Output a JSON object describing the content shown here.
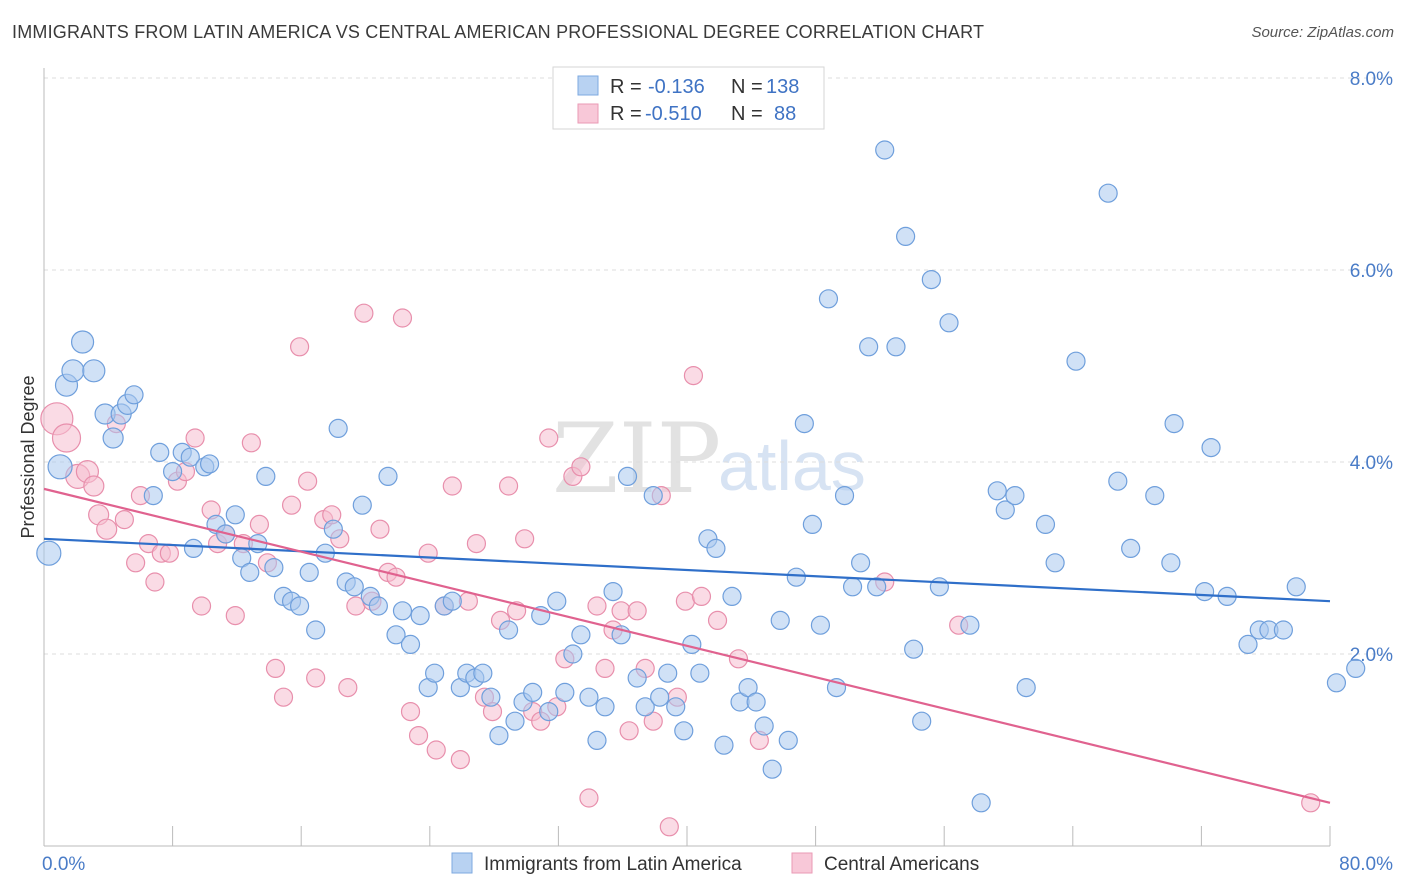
{
  "title": "IMMIGRANTS FROM LATIN AMERICA VS CENTRAL AMERICAN PROFESSIONAL DEGREE CORRELATION CHART",
  "source": "Source: ZipAtlas.com",
  "watermark": {
    "zip": "ZIP",
    "atlas": "atlas"
  },
  "colors": {
    "blue_fill": "#aac8ef",
    "blue_stroke": "#6f9fdc",
    "blue_line": "#2f6fc9",
    "pink_fill": "#f6bdd0",
    "pink_stroke": "#e88fac",
    "pink_line": "#e0628f",
    "grid": "#dcdcdc",
    "tick_text": "#4a7cc7"
  },
  "legend": {
    "rows": [
      {
        "r_label": "R =",
        "r_value": "-0.136",
        "n_label": "N =",
        "n_value": "138"
      },
      {
        "r_label": "R =",
        "r_value": "-0.510",
        "n_label": "N =",
        "n_value": "88"
      }
    ]
  },
  "chart_data": {
    "type": "scatter",
    "ylabel": "Professional Degree",
    "xlim": [
      0,
      80
    ],
    "ylim": [
      0,
      8.2
    ],
    "x_tick_labels": [
      "0.0%",
      "80.0%"
    ],
    "y_ticks": [
      2,
      4,
      6,
      8
    ],
    "y_tick_labels": [
      "2.0%",
      "4.0%",
      "6.0%",
      "8.0%"
    ],
    "grid": "horizontal dashed",
    "legend_placement": "top-center",
    "series": [
      {
        "name": "Immigrants from Latin America",
        "r": -0.136,
        "n": 138,
        "trend": {
          "x0": 0,
          "y0": 3.2,
          "x1": 80,
          "y1": 2.55
        },
        "points": [
          [
            0.3,
            3.05,
            12
          ],
          [
            1.0,
            3.95,
            12
          ],
          [
            1.4,
            4.8,
            11
          ],
          [
            1.8,
            4.95,
            11
          ],
          [
            2.4,
            5.25,
            11
          ],
          [
            3.1,
            4.95,
            11
          ],
          [
            3.8,
            4.5,
            10
          ],
          [
            4.3,
            4.25,
            10
          ],
          [
            4.8,
            4.5,
            10
          ],
          [
            5.2,
            4.6,
            10
          ],
          [
            5.6,
            4.7,
            9
          ],
          [
            6.8,
            3.65,
            9
          ],
          [
            7.2,
            4.1,
            9
          ],
          [
            8.0,
            3.9,
            9
          ],
          [
            8.6,
            4.1,
            9
          ],
          [
            9.1,
            4.05,
            9
          ],
          [
            9.3,
            3.1,
            9
          ],
          [
            10.0,
            3.95,
            9
          ],
          [
            10.3,
            3.98,
            9
          ],
          [
            10.7,
            3.35,
            9
          ],
          [
            11.3,
            3.25,
            9
          ],
          [
            11.9,
            3.45,
            9
          ],
          [
            12.3,
            3.0,
            9
          ],
          [
            12.8,
            2.85,
            9
          ],
          [
            13.3,
            3.15,
            9
          ],
          [
            13.8,
            3.85,
            9
          ],
          [
            14.3,
            2.9,
            9
          ],
          [
            14.9,
            2.6,
            9
          ],
          [
            15.4,
            2.55,
            9
          ],
          [
            15.9,
            2.5,
            9
          ],
          [
            16.5,
            2.85,
            9
          ],
          [
            16.9,
            2.25,
            9
          ],
          [
            17.5,
            3.05,
            9
          ],
          [
            18.0,
            3.3,
            9
          ],
          [
            18.3,
            4.35,
            9
          ],
          [
            18.8,
            2.75,
            9
          ],
          [
            19.3,
            2.7,
            9
          ],
          [
            19.8,
            3.55,
            9
          ],
          [
            20.3,
            2.6,
            9
          ],
          [
            20.8,
            2.5,
            9
          ],
          [
            21.4,
            3.85,
            9
          ],
          [
            21.9,
            2.2,
            9
          ],
          [
            22.3,
            2.45,
            9
          ],
          [
            22.8,
            2.1,
            9
          ],
          [
            23.4,
            2.4,
            9
          ],
          [
            23.9,
            1.65,
            9
          ],
          [
            24.3,
            1.8,
            9
          ],
          [
            24.9,
            2.5,
            9
          ],
          [
            25.4,
            2.55,
            9
          ],
          [
            25.9,
            1.65,
            9
          ],
          [
            26.3,
            1.8,
            9
          ],
          [
            26.8,
            1.75,
            9
          ],
          [
            27.3,
            1.8,
            9
          ],
          [
            27.8,
            1.55,
            9
          ],
          [
            28.3,
            1.15,
            9
          ],
          [
            28.9,
            2.25,
            9
          ],
          [
            29.3,
            1.3,
            9
          ],
          [
            29.8,
            1.5,
            9
          ],
          [
            30.4,
            1.6,
            9
          ],
          [
            30.9,
            2.4,
            9
          ],
          [
            31.4,
            1.4,
            9
          ],
          [
            31.9,
            2.55,
            9
          ],
          [
            32.4,
            1.6,
            9
          ],
          [
            32.9,
            2.0,
            9
          ],
          [
            33.4,
            2.2,
            9
          ],
          [
            33.9,
            1.55,
            9
          ],
          [
            34.4,
            1.1,
            9
          ],
          [
            34.9,
            1.45,
            9
          ],
          [
            35.4,
            2.65,
            9
          ],
          [
            35.9,
            2.2,
            9
          ],
          [
            36.3,
            3.85,
            9
          ],
          [
            36.9,
            1.75,
            9
          ],
          [
            37.4,
            1.45,
            9
          ],
          [
            37.9,
            3.65,
            9
          ],
          [
            38.3,
            1.55,
            9
          ],
          [
            38.8,
            1.8,
            9
          ],
          [
            39.3,
            1.45,
            9
          ],
          [
            39.8,
            1.2,
            9
          ],
          [
            40.3,
            2.1,
            9
          ],
          [
            40.8,
            1.8,
            9
          ],
          [
            41.3,
            3.2,
            9
          ],
          [
            41.8,
            3.1,
            9
          ],
          [
            42.3,
            1.05,
            9
          ],
          [
            42.8,
            2.6,
            9
          ],
          [
            43.3,
            1.5,
            9
          ],
          [
            43.8,
            1.65,
            9
          ],
          [
            44.3,
            1.5,
            9
          ],
          [
            44.8,
            1.25,
            9
          ],
          [
            45.3,
            0.8,
            9
          ],
          [
            45.8,
            2.35,
            9
          ],
          [
            46.3,
            1.1,
            9
          ],
          [
            46.8,
            2.8,
            9
          ],
          [
            47.3,
            4.4,
            9
          ],
          [
            47.8,
            3.35,
            9
          ],
          [
            48.3,
            2.3,
            9
          ],
          [
            48.8,
            5.7,
            9
          ],
          [
            49.3,
            1.65,
            9
          ],
          [
            49.8,
            3.65,
            9
          ],
          [
            50.3,
            2.7,
            9
          ],
          [
            50.8,
            2.95,
            9
          ],
          [
            51.3,
            5.2,
            9
          ],
          [
            51.8,
            2.7,
            9
          ],
          [
            52.3,
            7.25,
            9
          ],
          [
            53.0,
            5.2,
            9
          ],
          [
            53.6,
            6.35,
            9
          ],
          [
            54.1,
            2.05,
            9
          ],
          [
            54.6,
            1.3,
            9
          ],
          [
            55.2,
            5.9,
            9
          ],
          [
            55.7,
            2.7,
            9
          ],
          [
            56.3,
            5.45,
            9
          ],
          [
            57.6,
            2.3,
            9
          ],
          [
            58.3,
            0.45,
            9
          ],
          [
            59.3,
            3.7,
            9
          ],
          [
            59.8,
            3.5,
            9
          ],
          [
            60.4,
            3.65,
            9
          ],
          [
            61.1,
            1.65,
            9
          ],
          [
            62.3,
            3.35,
            9
          ],
          [
            62.9,
            2.95,
            9
          ],
          [
            64.2,
            5.05,
            9
          ],
          [
            66.2,
            6.8,
            9
          ],
          [
            66.8,
            3.8,
            9
          ],
          [
            67.6,
            3.1,
            9
          ],
          [
            69.1,
            3.65,
            9
          ],
          [
            70.1,
            2.95,
            9
          ],
          [
            70.3,
            4.4,
            9
          ],
          [
            72.2,
            2.65,
            9
          ],
          [
            72.6,
            4.15,
            9
          ],
          [
            73.6,
            2.6,
            9
          ],
          [
            74.9,
            2.1,
            9
          ],
          [
            75.6,
            2.25,
            9
          ],
          [
            76.2,
            2.25,
            9
          ],
          [
            77.1,
            2.25,
            9
          ],
          [
            77.9,
            2.7,
            9
          ],
          [
            80.4,
            1.7,
            9
          ],
          [
            81.6,
            1.85,
            9
          ]
        ]
      },
      {
        "name": "Central Americans",
        "r": -0.51,
        "n": 88,
        "trend": {
          "x0": 0,
          "y0": 3.72,
          "x1": 80,
          "y1": 0.45
        },
        "points": [
          [
            0.8,
            4.45,
            16
          ],
          [
            1.4,
            4.25,
            14
          ],
          [
            2.1,
            3.85,
            12
          ],
          [
            2.7,
            3.9,
            11
          ],
          [
            3.1,
            3.75,
            10
          ],
          [
            3.4,
            3.45,
            10
          ],
          [
            3.9,
            3.3,
            10
          ],
          [
            4.5,
            4.4,
            9
          ],
          [
            5.0,
            3.4,
            9
          ],
          [
            5.7,
            2.95,
            9
          ],
          [
            6.0,
            3.65,
            9
          ],
          [
            6.5,
            3.15,
            9
          ],
          [
            6.9,
            2.75,
            9
          ],
          [
            7.3,
            3.05,
            9
          ],
          [
            7.8,
            3.05,
            9
          ],
          [
            8.3,
            3.8,
            9
          ],
          [
            8.8,
            3.9,
            9
          ],
          [
            9.4,
            4.25,
            9
          ],
          [
            9.8,
            2.5,
            9
          ],
          [
            10.4,
            3.5,
            9
          ],
          [
            10.8,
            3.15,
            9
          ],
          [
            11.3,
            3.25,
            9
          ],
          [
            11.9,
            2.4,
            9
          ],
          [
            12.4,
            3.15,
            9
          ],
          [
            12.9,
            4.2,
            9
          ],
          [
            13.4,
            3.35,
            9
          ],
          [
            13.9,
            2.95,
            9
          ],
          [
            14.4,
            1.85,
            9
          ],
          [
            14.9,
            1.55,
            9
          ],
          [
            15.4,
            3.55,
            9
          ],
          [
            15.9,
            5.2,
            9
          ],
          [
            16.4,
            3.8,
            9
          ],
          [
            16.9,
            1.75,
            9
          ],
          [
            17.4,
            3.4,
            9
          ],
          [
            17.9,
            3.45,
            9
          ],
          [
            18.4,
            3.2,
            9
          ],
          [
            18.9,
            1.65,
            9
          ],
          [
            19.4,
            2.5,
            9
          ],
          [
            19.9,
            5.55,
            9
          ],
          [
            20.4,
            2.55,
            9
          ],
          [
            20.9,
            3.3,
            9
          ],
          [
            21.4,
            2.85,
            9
          ],
          [
            21.9,
            2.8,
            9
          ],
          [
            22.3,
            5.5,
            9
          ],
          [
            22.8,
            1.4,
            9
          ],
          [
            23.3,
            1.15,
            9
          ],
          [
            23.9,
            3.05,
            9
          ],
          [
            24.4,
            1.0,
            9
          ],
          [
            24.9,
            2.5,
            9
          ],
          [
            25.4,
            3.75,
            9
          ],
          [
            25.9,
            0.9,
            9
          ],
          [
            26.4,
            2.55,
            9
          ],
          [
            26.9,
            3.15,
            9
          ],
          [
            27.4,
            1.55,
            9
          ],
          [
            27.9,
            1.4,
            9
          ],
          [
            28.4,
            2.35,
            9
          ],
          [
            28.9,
            3.75,
            9
          ],
          [
            29.4,
            2.45,
            9
          ],
          [
            29.9,
            3.2,
            9
          ],
          [
            30.4,
            1.4,
            9
          ],
          [
            30.9,
            1.3,
            9
          ],
          [
            31.4,
            4.25,
            9
          ],
          [
            31.9,
            1.45,
            9
          ],
          [
            32.4,
            1.95,
            9
          ],
          [
            32.9,
            3.85,
            9
          ],
          [
            33.4,
            3.95,
            9
          ],
          [
            33.9,
            0.5,
            9
          ],
          [
            34.4,
            2.5,
            9
          ],
          [
            34.9,
            1.85,
            9
          ],
          [
            35.4,
            2.25,
            9
          ],
          [
            35.9,
            2.45,
            9
          ],
          [
            36.4,
            1.2,
            9
          ],
          [
            36.9,
            2.45,
            9
          ],
          [
            37.4,
            1.85,
            9
          ],
          [
            37.9,
            1.3,
            9
          ],
          [
            38.4,
            3.65,
            9
          ],
          [
            38.9,
            0.2,
            9
          ],
          [
            39.4,
            1.55,
            9
          ],
          [
            39.9,
            2.55,
            9
          ],
          [
            40.4,
            4.9,
            9
          ],
          [
            40.9,
            2.6,
            9
          ],
          [
            41.9,
            2.35,
            9
          ],
          [
            43.2,
            1.95,
            9
          ],
          [
            44.5,
            1.1,
            9
          ],
          [
            52.3,
            2.75,
            9
          ],
          [
            56.9,
            2.3,
            9
          ],
          [
            78.8,
            0.45,
            9
          ]
        ]
      }
    ]
  }
}
